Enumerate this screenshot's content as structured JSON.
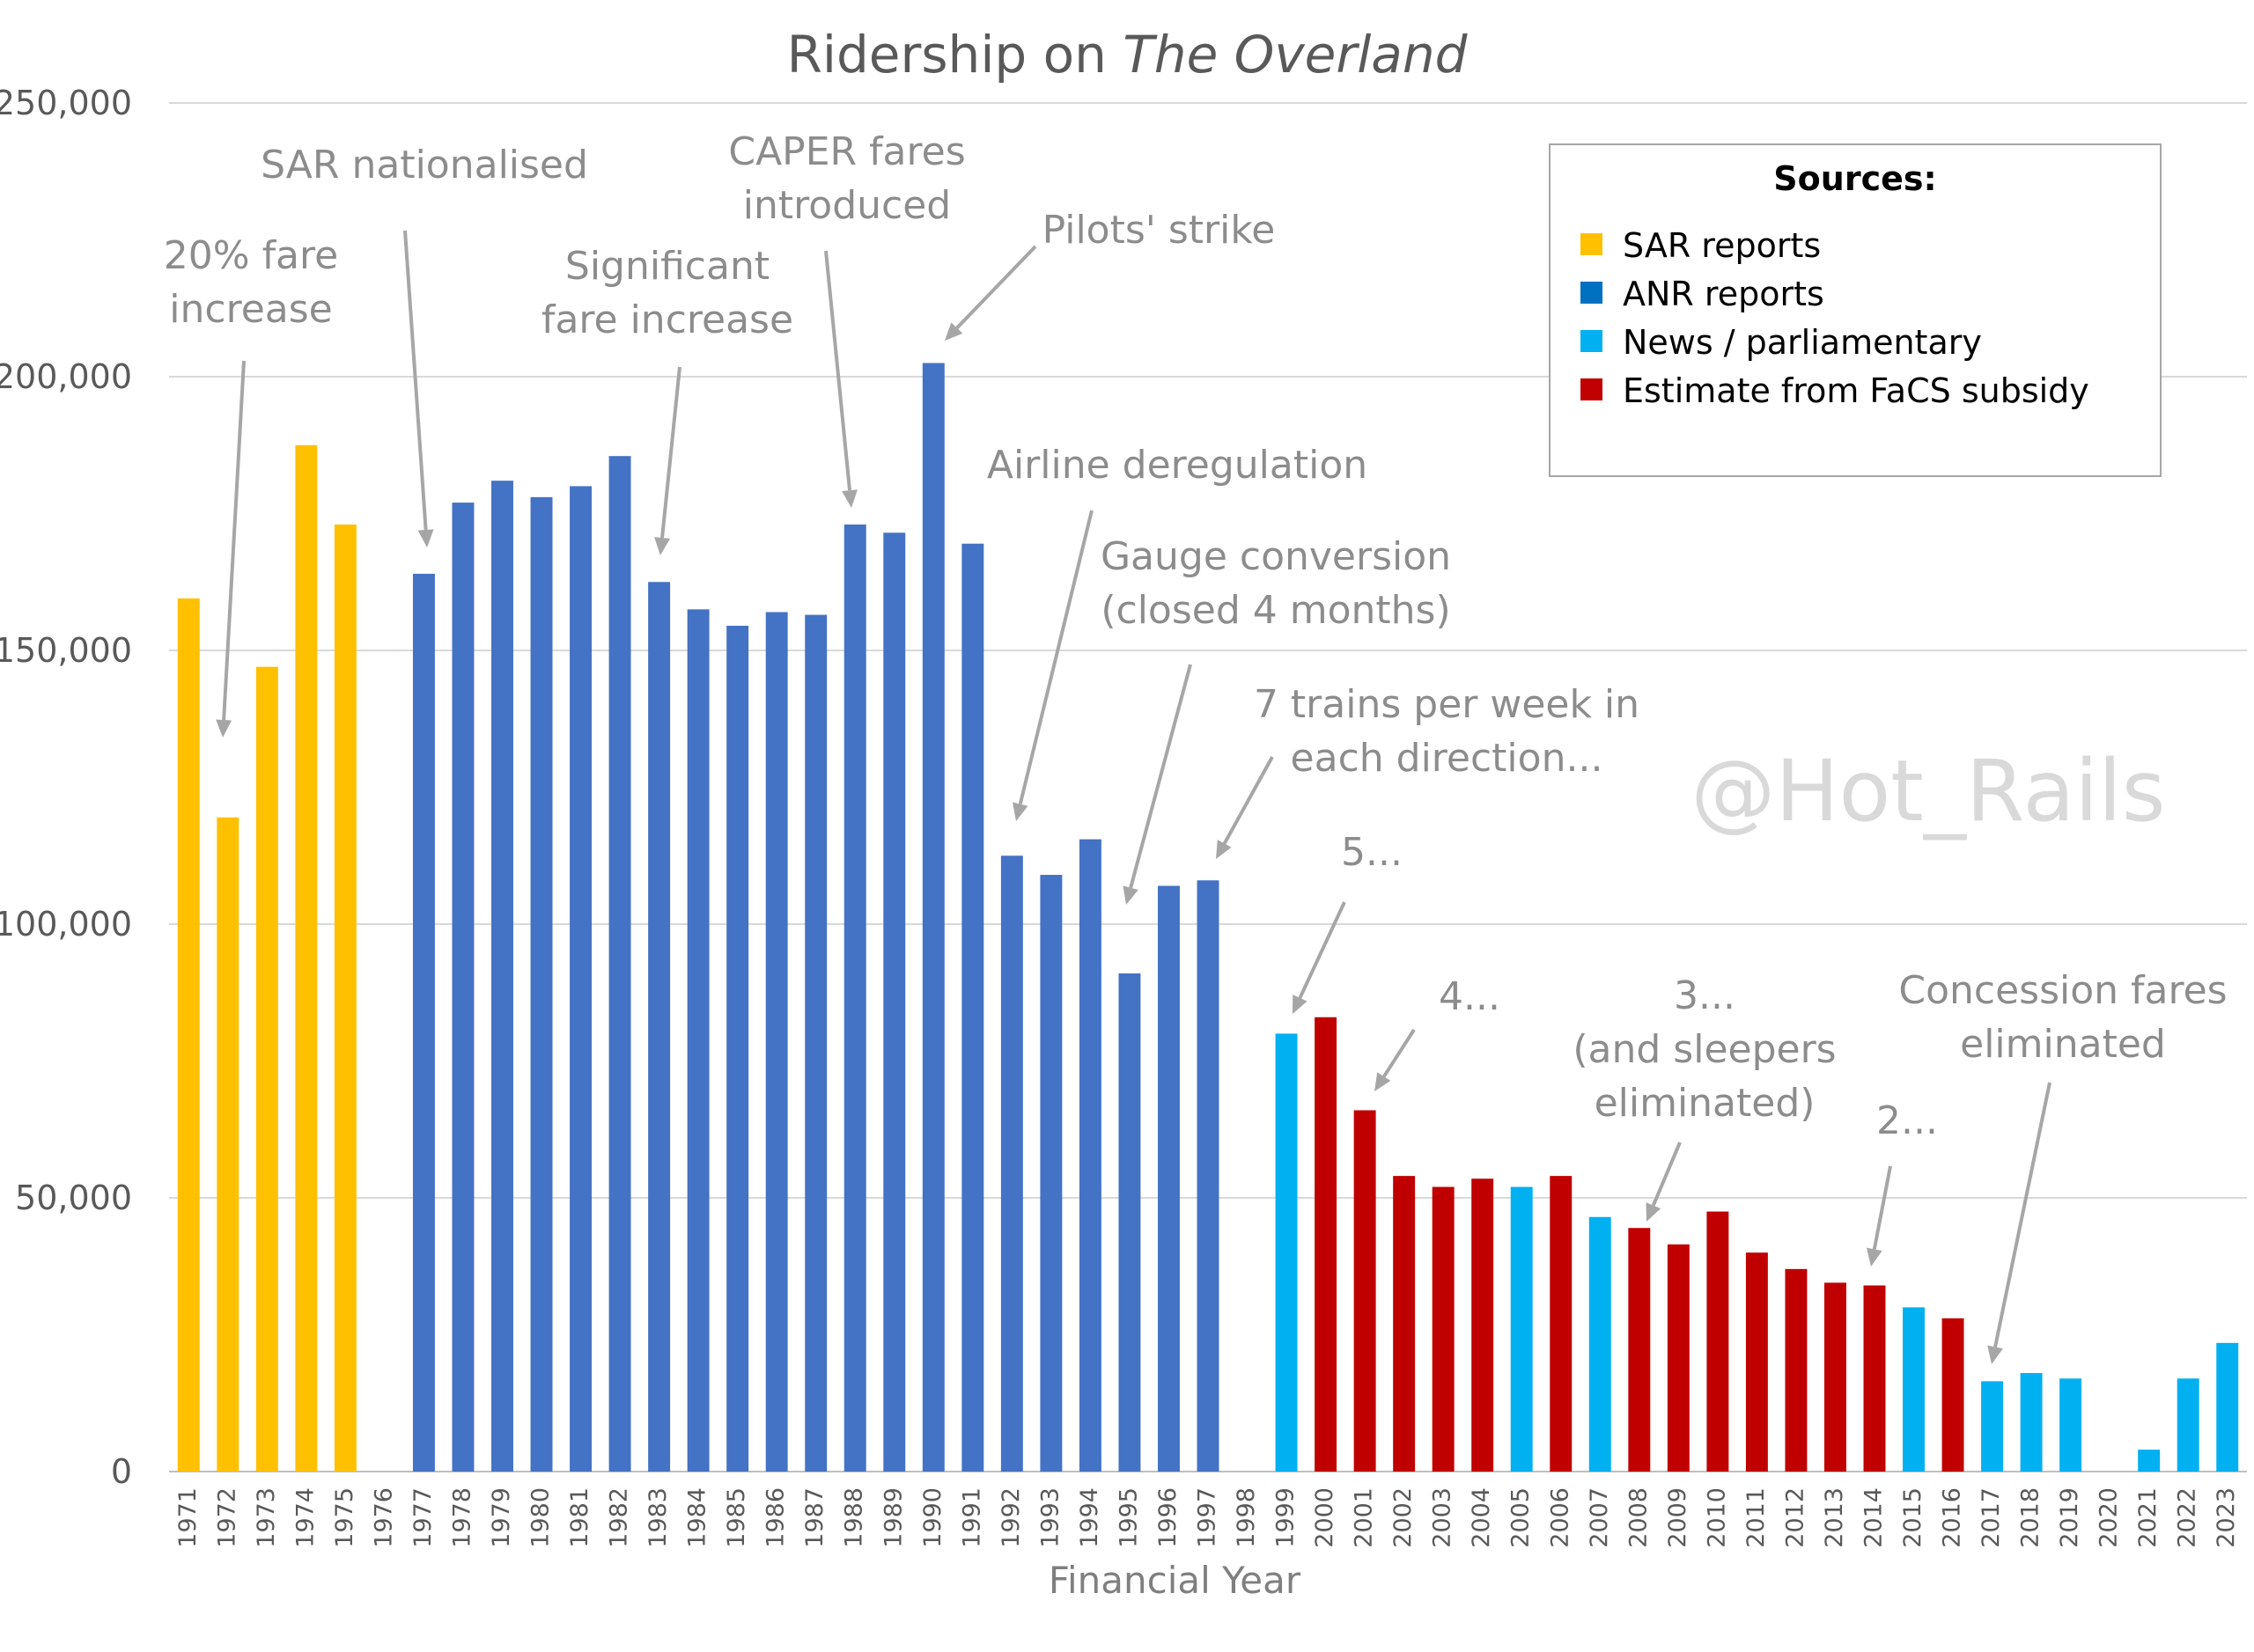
{
  "chart_data": {
    "type": "bar",
    "title_main": "Ridership on ",
    "title_italic": "The Overland",
    "xlabel": "Financial Year",
    "ylabel": "",
    "ylim": [
      0,
      250000
    ],
    "yticks": [
      "0",
      "50,000",
      "100,000",
      "150,000",
      "200,000",
      "250,000"
    ],
    "ytick_values": [
      0,
      50000,
      100000,
      150000,
      200000,
      250000
    ],
    "grid": true,
    "categories": [
      "1971",
      "1972",
      "1973",
      "1974",
      "1975",
      "1976",
      "1977",
      "1978",
      "1979",
      "1980",
      "1981",
      "1982",
      "1983",
      "1984",
      "1985",
      "1986",
      "1987",
      "1988",
      "1989",
      "1990",
      "1991",
      "1992",
      "1993",
      "1994",
      "1995",
      "1996",
      "1997",
      "1998",
      "1999",
      "2000",
      "2001",
      "2002",
      "2003",
      "2004",
      "2005",
      "2006",
      "2007",
      "2008",
      "2009",
      "2010",
      "2011",
      "2012",
      "2013",
      "2014",
      "2015",
      "2016",
      "2017",
      "2018",
      "2019",
      "2020",
      "2021",
      "2022",
      "2023"
    ],
    "values": [
      159500,
      119500,
      147000,
      187500,
      173000,
      null,
      164000,
      177000,
      181000,
      178000,
      180000,
      185500,
      162500,
      157500,
      154500,
      157000,
      156500,
      173000,
      171500,
      202500,
      169500,
      112500,
      109000,
      115500,
      91000,
      107000,
      108000,
      null,
      80000,
      83000,
      66000,
      54000,
      52000,
      53500,
      52000,
      54000,
      46500,
      44500,
      41500,
      47500,
      40000,
      37000,
      34500,
      34000,
      30000,
      28000,
      16500,
      18000,
      17000,
      null,
      4000,
      17000,
      23500
    ],
    "sources": [
      "SAR",
      "SAR",
      "SAR",
      "SAR",
      "SAR",
      null,
      "ANR",
      "ANR",
      "ANR",
      "ANR",
      "ANR",
      "ANR",
      "ANR",
      "ANR",
      "ANR",
      "ANR",
      "ANR",
      "ANR",
      "ANR",
      "ANR",
      "ANR",
      "ANR",
      "ANR",
      "ANR",
      "ANR",
      "ANR",
      "ANR",
      null,
      "NEWS",
      "FACS",
      "FACS",
      "FACS",
      "FACS",
      "FACS",
      "NEWS",
      "FACS",
      "NEWS",
      "FACS",
      "FACS",
      "FACS",
      "FACS",
      "FACS",
      "FACS",
      "FACS",
      "NEWS",
      "FACS",
      "NEWS",
      "NEWS",
      "NEWS",
      null,
      "NEWS",
      "NEWS",
      "NEWS"
    ],
    "colors": {
      "SAR": "#FFC000",
      "ANR": "#4472C4",
      "NEWS": "#00B0F0",
      "FACS": "#C00000",
      "legend_anr": "#0070C0",
      "grid": "#d9d9d9",
      "axis": "#bfbfbf",
      "arrow": "#a6a6a6"
    },
    "legend": {
      "title": "Sources:",
      "placement": "top-right",
      "items": [
        {
          "key": "SAR",
          "label": "SAR reports"
        },
        {
          "key": "legend_anr",
          "label": "ANR reports"
        },
        {
          "key": "NEWS",
          "label": "News / parliamentary"
        },
        {
          "key": "FACS",
          "label": "Estimate from FaCS subsidy"
        }
      ]
    },
    "annotations": [
      {
        "lines": [
          "20% fare",
          "increase"
        ],
        "target": "1972"
      },
      {
        "lines": [
          "SAR nationalised"
        ],
        "target": "1977"
      },
      {
        "lines": [
          "Significant",
          "fare increase"
        ],
        "target": "1983"
      },
      {
        "lines": [
          "CAPER fares",
          "introduced"
        ],
        "target": "1988"
      },
      {
        "lines": [
          "Pilots' strike"
        ],
        "target": "1990"
      },
      {
        "lines": [
          "Airline deregulation"
        ],
        "target": "1992"
      },
      {
        "lines": [
          "Gauge conversion",
          "(closed 4 months)"
        ],
        "target": "1995"
      },
      {
        "lines": [
          "7 trains per week in",
          "each direction..."
        ],
        "target": "1997"
      },
      {
        "lines": [
          "5..."
        ],
        "target": "1999"
      },
      {
        "lines": [
          "4..."
        ],
        "target": "2001"
      },
      {
        "lines": [
          "3...",
          "(and sleepers",
          "eliminated)"
        ],
        "target": "2008"
      },
      {
        "lines": [
          "2..."
        ],
        "target": "2014"
      },
      {
        "lines": [
          "Concession fares",
          "eliminated"
        ],
        "target": "2017"
      }
    ],
    "watermark": "@Hot_Rails"
  }
}
